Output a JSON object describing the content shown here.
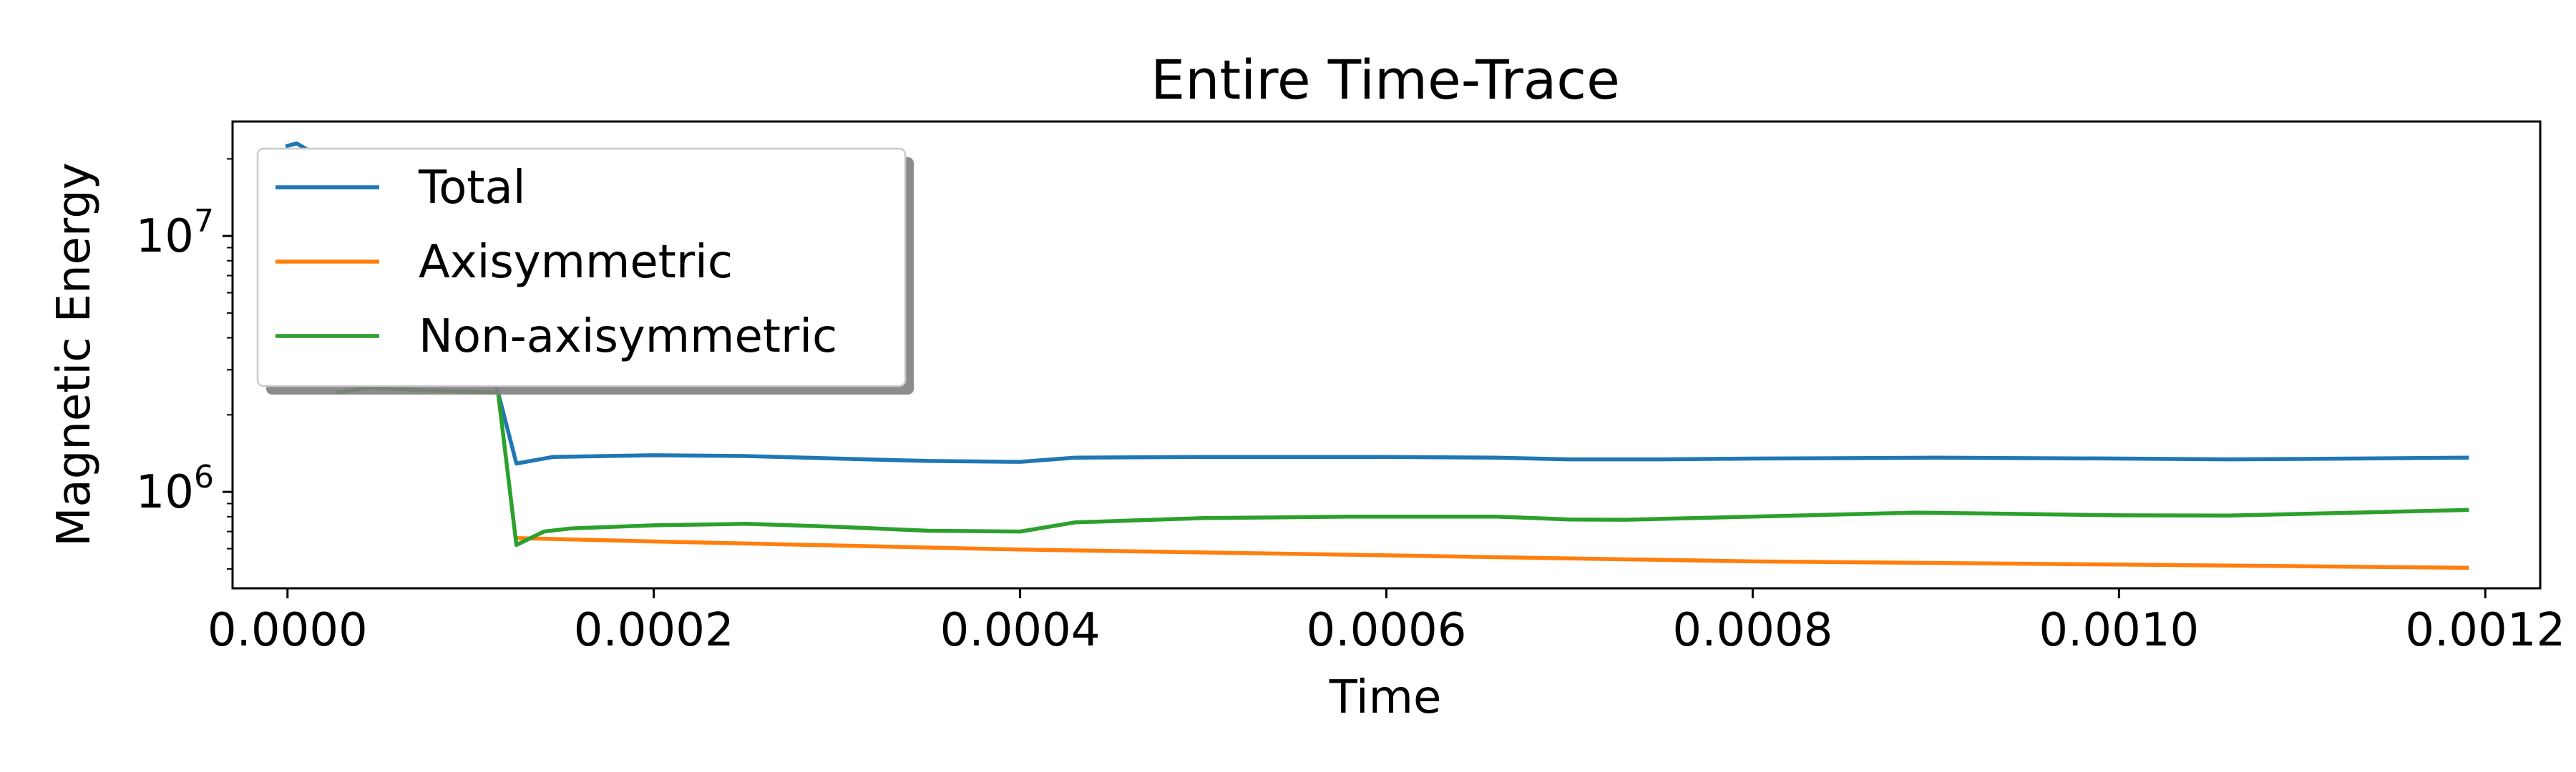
{
  "chart_data": {
    "type": "line",
    "title": "Entire Time-Trace",
    "xlabel": "Time",
    "ylabel": "Magnetic Energy",
    "xscale": "linear",
    "yscale": "log",
    "xlim": [
      -3e-05,
      0.00123
    ],
    "ylim": [
      420000,
      28000000
    ],
    "grid": false,
    "legend_placement": "upper-left",
    "x_ticks": [
      {
        "value": 0.0,
        "label": "0.0000"
      },
      {
        "value": 0.0002,
        "label": "0.0002"
      },
      {
        "value": 0.0004,
        "label": "0.0004"
      },
      {
        "value": 0.0006,
        "label": "0.0006"
      },
      {
        "value": 0.0008,
        "label": "0.0008"
      },
      {
        "value": 0.001,
        "label": "0.0010"
      },
      {
        "value": 0.0012,
        "label": "0.0012"
      }
    ],
    "y_ticks": [
      {
        "value": 1000000,
        "base": "10",
        "exp": "6"
      },
      {
        "value": 10000000,
        "base": "10",
        "exp": "7"
      }
    ],
    "series": [
      {
        "name": "Total",
        "color": "#1f77b4",
        "points": [
          [
            0.0,
            22500000
          ],
          [
            5e-06,
            23000000
          ],
          [
            1.2e-05,
            21500000
          ],
          [
            0.000114,
            2600000
          ],
          [
            0.000125,
            1290000
          ],
          [
            0.000145,
            1370000
          ],
          [
            0.0002,
            1390000
          ],
          [
            0.00025,
            1380000
          ],
          [
            0.0003,
            1350000
          ],
          [
            0.00035,
            1320000
          ],
          [
            0.0004,
            1310000
          ],
          [
            0.00043,
            1360000
          ],
          [
            0.0005,
            1370000
          ],
          [
            0.0006,
            1370000
          ],
          [
            0.00066,
            1360000
          ],
          [
            0.0007,
            1340000
          ],
          [
            0.00075,
            1340000
          ],
          [
            0.0008,
            1350000
          ],
          [
            0.0009,
            1360000
          ],
          [
            0.001,
            1350000
          ],
          [
            0.00106,
            1340000
          ],
          [
            0.0011,
            1345000
          ],
          [
            0.00119,
            1360000
          ]
        ]
      },
      {
        "name": "Axisymmetric",
        "color": "#ff7f0e",
        "points": [
          [
            0.000125,
            660000
          ],
          [
            0.0002,
            640000
          ],
          [
            0.0004,
            595000
          ],
          [
            0.0006,
            565000
          ],
          [
            0.0008,
            535000
          ],
          [
            0.001,
            520000
          ],
          [
            0.00119,
            505000
          ]
        ]
      },
      {
        "name": "Non-axisymmetric",
        "color": "#2ca02c",
        "points": [
          [
            2.8e-05,
            2450000
          ],
          [
            4.5e-05,
            2560000
          ],
          [
            7e-05,
            2500000
          ],
          [
            0.000115,
            2440000
          ],
          [
            0.000125,
            620000
          ],
          [
            0.00014,
            700000
          ],
          [
            0.000155,
            720000
          ],
          [
            0.0002,
            740000
          ],
          [
            0.00025,
            750000
          ],
          [
            0.0003,
            730000
          ],
          [
            0.00035,
            705000
          ],
          [
            0.0004,
            700000
          ],
          [
            0.00043,
            760000
          ],
          [
            0.0005,
            790000
          ],
          [
            0.00058,
            800000
          ],
          [
            0.00066,
            800000
          ],
          [
            0.0007,
            780000
          ],
          [
            0.00073,
            778000
          ],
          [
            0.0008,
            800000
          ],
          [
            0.00089,
            830000
          ],
          [
            0.001,
            810000
          ],
          [
            0.00106,
            808000
          ],
          [
            0.00119,
            850000
          ]
        ]
      }
    ]
  }
}
